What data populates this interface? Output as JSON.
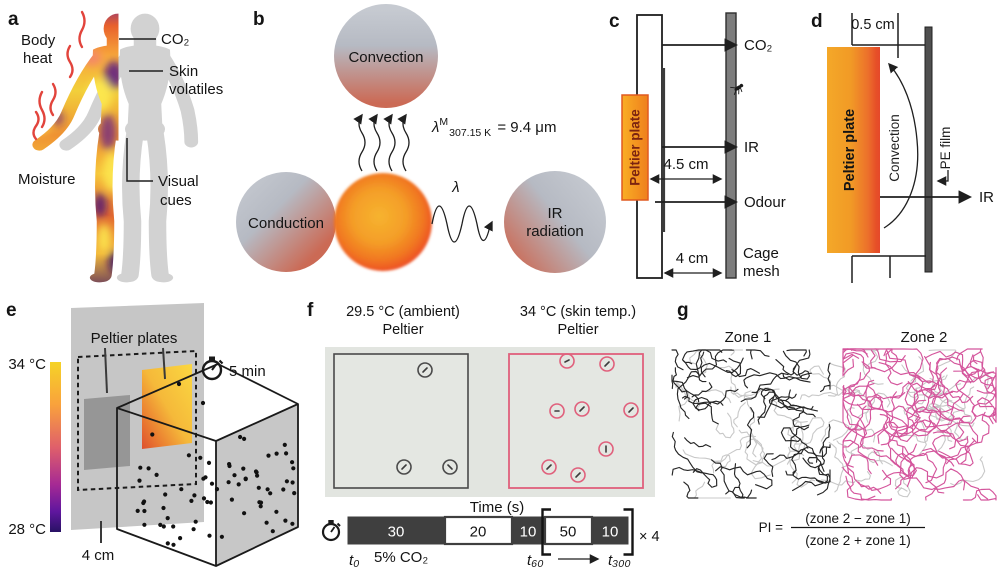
{
  "panels": {
    "a": {
      "label": "a",
      "body_heat_line1": "Body",
      "body_heat_line2": "heat",
      "co2": "CO₂",
      "skin_line1": "Skin",
      "skin_line2": "volatiles",
      "moisture": "Moisture",
      "visual_line1": "Visual",
      "visual_line2": "cues"
    },
    "b": {
      "label": "b",
      "convection": "Convection",
      "conduction": "Conduction",
      "ir_line1": "IR",
      "ir_line2": "radiation",
      "lambda_symbol": "λ",
      "formula": {
        "lambda": "λ",
        "sup": "M",
        "sub": "307.15 K",
        "rhs": " = 9.4 μm"
      }
    },
    "c": {
      "label": "c",
      "peltier_plate": "Peltier plate",
      "co2": "CO₂",
      "ir": "IR",
      "odour": "Odour",
      "dist_plate_mesh": "4.5 cm",
      "dist_wall_mesh": "4 cm",
      "cage_line1": "Cage",
      "cage_line2": "mesh"
    },
    "d": {
      "label": "d",
      "gap": "0.5 cm",
      "peltier_plate": "Peltier plate",
      "convection": "Convection",
      "pe_film": "PE film",
      "ir": "IR"
    },
    "e": {
      "label": "e",
      "temp_max": "34 °C",
      "temp_min": "28 °C",
      "peltier_plates": "Peltier plates",
      "duration": "5 min",
      "distance": "4 cm"
    },
    "f": {
      "label": "f",
      "left_title": "29.5 °C (ambient)",
      "left_subtitle": "Peltier",
      "right_title": "34 °C (skin temp.)",
      "right_subtitle": "Peltier",
      "time_axis": "Time (s)",
      "segments": [
        "30",
        "20",
        "10",
        "50",
        "10"
      ],
      "repeat": "× 4",
      "t_start": "t₀",
      "co2": "5% CO₂",
      "t_60": "t₆₀",
      "t_300": "t₃₀₀"
    },
    "g": {
      "label": "g",
      "zone1": "Zone 1",
      "zone2": "Zone 2",
      "pi_label": "PI =",
      "numerator": "(zone 2 − zone 1)",
      "denominator": "(zone 2 + zone 1)"
    }
  },
  "colors": {
    "track_black": "#262626",
    "track_grey": "#c8c8c8",
    "track_pink": "#d4559c",
    "dot_black": "#111111",
    "pink_outline": "#e0607c",
    "hot_orange": "#f08c1e",
    "hot_red": "#ee512b",
    "grey_silhouette": "#d2d2d2",
    "heat_red": "#e2443c"
  }
}
